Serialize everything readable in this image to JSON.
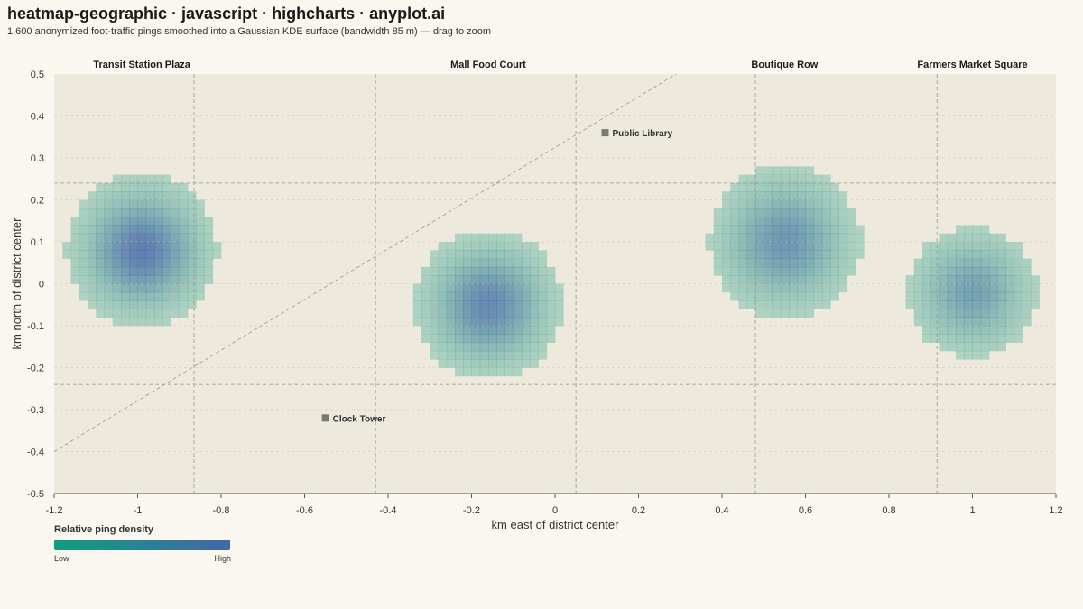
{
  "header": {
    "title": "heatmap-geographic · javascript · highcharts · anyplot.ai",
    "subtitle": "1,600 anonymized foot-traffic pings smoothed into a Gaussian KDE surface (bandwidth 85 m) — drag to zoom"
  },
  "colors": {
    "background": "#faf7f1",
    "plot_background": "#ede9dc",
    "low": "#0f9e7b",
    "high": "#4466a8",
    "landmark": "#7a7a72"
  },
  "chart_data": {
    "type": "heatmap",
    "xlabel": "km east of district center",
    "ylabel": "km north of district center",
    "xlim": [
      -1.2,
      1.2
    ],
    "ylim": [
      -0.5,
      0.5
    ],
    "x_ticks": [
      "-1.2",
      "-1",
      "-0.8",
      "-0.6",
      "-0.4",
      "-0.2",
      "0",
      "0.2",
      "0.4",
      "0.6",
      "0.8",
      "1",
      "1.2"
    ],
    "y_ticks": [
      "0.5",
      "0.4",
      "0.3",
      "0.2",
      "0.1",
      "0",
      "-0.1",
      "-0.2",
      "-0.3",
      "-0.4",
      "-0.5"
    ],
    "hotspots": [
      {
        "name": "Transit Station Plaza",
        "x": -0.99,
        "y": 0.08,
        "sigma": 0.085,
        "peak": 1.0
      },
      {
        "name": "Mall Food Court",
        "x": -0.16,
        "y": -0.05,
        "sigma": 0.085,
        "peak": 0.9
      },
      {
        "name": "Boutique Row",
        "x": 0.55,
        "y": 0.1,
        "sigma": 0.09,
        "peak": 0.78
      },
      {
        "name": "Farmers Market Square",
        "x": 1.0,
        "y": -0.02,
        "sigma": 0.08,
        "peak": 0.68
      }
    ],
    "landmarks": [
      {
        "name": "Public Library",
        "x": 0.12,
        "y": 0.36
      },
      {
        "name": "Clock Tower",
        "x": -0.55,
        "y": -0.32
      }
    ],
    "streets": {
      "vertical": [
        -0.865,
        -0.43,
        0.05,
        0.48,
        0.915
      ],
      "horizontal": [
        0.24,
        -0.24
      ],
      "diagonal": [
        [
          -1.2,
          -0.4
        ],
        [
          0.29,
          0.5
        ]
      ]
    },
    "legend": {
      "title": "Relative ping density",
      "low_label": "Low",
      "high_label": "High"
    }
  }
}
